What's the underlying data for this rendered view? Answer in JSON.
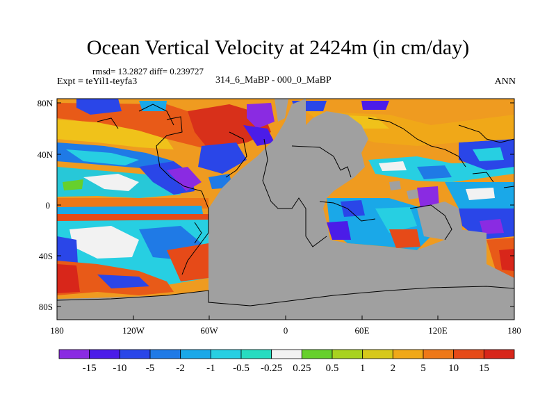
{
  "title": "Ocean Vertical Velocity at 2424m (in cm/day)",
  "stats": "rmsd= 13.2827 diff= 0.239727",
  "expt": "Expt = teYil1-teyfa3",
  "subtitle": "314_6_MaBP - 000_0_MaBP",
  "season": "ANN",
  "lat_ticks": [
    "80N",
    "40N",
    "0",
    "40S",
    "80S"
  ],
  "lon_ticks": [
    "180",
    "120W",
    "60W",
    "0",
    "60E",
    "120E",
    "180"
  ],
  "colorbar": {
    "labels": [
      "-15",
      "-10",
      "-5",
      "-2",
      "-1",
      "-0.5",
      "-0.25",
      "0.25",
      "0.5",
      "1",
      "2",
      "5",
      "10",
      "15"
    ],
    "colors": [
      "#8a2be2",
      "#4b1ce8",
      "#2a46e8",
      "#1f7ae6",
      "#1aa8e8",
      "#27cfe2",
      "#27dcc0",
      "#f2f2f2",
      "#66d02c",
      "#a8d21f",
      "#d6c81a",
      "#f0a818",
      "#ee7818",
      "#e64a18",
      "#d8261a"
    ]
  },
  "colors": {
    "land": "#a0a0a0",
    "ocean_base": "#ee9a20"
  }
}
